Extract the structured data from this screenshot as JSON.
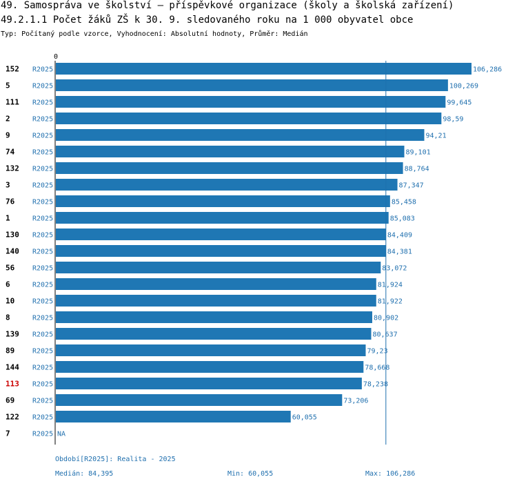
{
  "header": {
    "title": "49. Samospráva ve školství – příspěvkové organizace (školy a školská zařízení)",
    "subtitle": "49.2.1.1 Počet žáků ZŠ k 30. 9. sledovaného roku  na 1 000 obyvatel obce",
    "type_line": "Typ: Počítaný podle vzorce, Vyhodnocení: Absolutní hodnoty, Průměr: Medián"
  },
  "colors": {
    "bar": "#1f77b4",
    "highlight_label": "#cc0000",
    "text_blue": "#1f6fae"
  },
  "chart_data": {
    "type": "bar",
    "orientation": "horizontal",
    "title": "49.2.1.1 Počet žáků ZŠ k 30. 9. sledovaného roku  na 1 000 obyvatel obce",
    "xlim": [
      0,
      106.286
    ],
    "tick_labels": [
      "0"
    ],
    "median_line": 84.395,
    "highlight": "113",
    "series_label": "R2025",
    "categories": [
      "152",
      "5",
      "111",
      "2",
      "9",
      "74",
      "132",
      "3",
      "76",
      "1",
      "130",
      "140",
      "56",
      "6",
      "10",
      "8",
      "139",
      "89",
      "144",
      "113",
      "69",
      "122",
      "7"
    ],
    "values": [
      106.286,
      100.269,
      99.645,
      98.59,
      94.21,
      89.101,
      88.764,
      87.347,
      85.458,
      85.083,
      84.409,
      84.381,
      83.072,
      81.924,
      81.922,
      80.902,
      80.637,
      79.23,
      78.668,
      78.238,
      73.206,
      60.055,
      null
    ],
    "value_labels": [
      "106,286",
      "100,269",
      "99,645",
      "98,59",
      "94,21",
      "89,101",
      "88,764",
      "87,347",
      "85,458",
      "85,083",
      "84,409",
      "84,381",
      "83,072",
      "81,924",
      "81,922",
      "80,902",
      "80,637",
      "79,23",
      "78,668",
      "78,238",
      "73,206",
      "60,055",
      "NA"
    ]
  },
  "footer": {
    "period": "Období[R2025]: Realita - 2025",
    "median": "Medián: 84,395",
    "min": "Min: 60,055",
    "max": "Max: 106,286"
  }
}
